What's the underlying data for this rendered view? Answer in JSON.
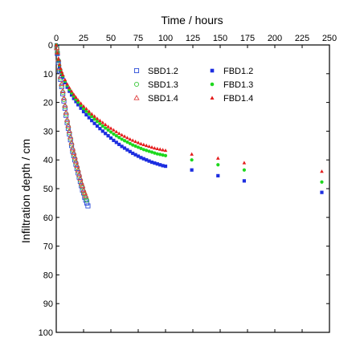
{
  "chart_data": {
    "type": "scatter",
    "xlabel": "Time / hours",
    "ylabel": "Infiltration depth / cm",
    "xlim": [
      0,
      250
    ],
    "ylim": [
      0,
      100
    ],
    "y_inverted": true,
    "x_axis_position": "top",
    "x_ticks": [
      0,
      25,
      50,
      75,
      100,
      125,
      150,
      175,
      200,
      225,
      250
    ],
    "y_ticks": [
      0,
      10,
      20,
      30,
      40,
      50,
      60,
      70,
      80,
      90,
      100
    ],
    "grid": false,
    "legend_position": "upper-middle",
    "series": [
      {
        "name": "SBD1.2",
        "marker": "square",
        "filled": false,
        "color": "#2a4bd7",
        "x": [
          0.5,
          1,
          2,
          3,
          4,
          5,
          6,
          7,
          8,
          9,
          10,
          11,
          12,
          13,
          14,
          15,
          16,
          17,
          18,
          19,
          20,
          21,
          22,
          23,
          24,
          25,
          26,
          27,
          28,
          29
        ],
        "y": [
          1,
          3,
          6,
          9,
          12,
          14.5,
          17,
          19.5,
          22,
          24.5,
          27,
          29,
          31,
          33,
          35,
          37,
          38.5,
          40,
          41.5,
          43,
          44.5,
          46,
          47.5,
          49,
          50.5,
          51.5,
          53,
          54,
          55,
          56
        ]
      },
      {
        "name": "SBD1.3",
        "marker": "circle",
        "filled": false,
        "color": "#3cc83c",
        "x": [
          0.5,
          1,
          2,
          3,
          4,
          5,
          6,
          7,
          8,
          9,
          10,
          11,
          12,
          13,
          14,
          15,
          16,
          17,
          18,
          19,
          20,
          21,
          22,
          23,
          24,
          25,
          26,
          27,
          28
        ],
        "y": [
          1,
          2.5,
          5.5,
          8.5,
          11.5,
          14,
          16.5,
          19,
          21.5,
          24,
          26.5,
          28.5,
          30.5,
          32.5,
          34.5,
          36.5,
          38,
          39.5,
          41,
          42.5,
          44,
          45.5,
          47,
          48.5,
          49.5,
          51,
          52,
          53,
          54
        ]
      },
      {
        "name": "SBD1.4",
        "marker": "triangle",
        "filled": false,
        "color": "#e04040",
        "x": [
          0.5,
          1,
          2,
          3,
          4,
          5,
          6,
          7,
          8,
          9,
          10,
          11,
          12,
          13,
          14,
          15,
          16,
          17,
          18,
          19,
          20,
          21,
          22,
          23,
          24,
          25,
          26,
          27
        ],
        "y": [
          1,
          2.5,
          5,
          8,
          11,
          13.5,
          16,
          18.5,
          21,
          23.5,
          26,
          28,
          30,
          32,
          34,
          36,
          37.5,
          39,
          40.5,
          42,
          43.5,
          45,
          46.5,
          48,
          49,
          50.5,
          51.5,
          52.5
        ]
      },
      {
        "name": "FBD1.2",
        "marker": "square",
        "filled": true,
        "color": "#1d2ee0",
        "x": [
          0,
          1,
          2,
          3,
          4,
          5,
          6,
          8,
          10,
          12,
          14,
          16,
          18,
          20,
          22.5,
          25,
          27.5,
          30,
          32.5,
          35,
          37.5,
          40,
          42.5,
          45,
          47.5,
          50,
          52.5,
          55,
          57.5,
          60,
          62.5,
          65,
          67.5,
          70,
          72.5,
          75,
          77.5,
          80,
          82.5,
          85,
          87.5,
          90,
          92.5,
          95,
          97.5,
          100,
          124,
          148,
          172,
          243
        ],
        "y": [
          0,
          3,
          5.5,
          7.5,
          9,
          10.2,
          11.2,
          13.1,
          14.7,
          16.1,
          17.4,
          18.6,
          19.7,
          20.8,
          22,
          23.2,
          24.3,
          25.3,
          26.3,
          27.3,
          28.2,
          29.1,
          30,
          30.8,
          31.6,
          32.4,
          33.2,
          33.9,
          34.6,
          35.3,
          35.9,
          36.5,
          37.1,
          37.7,
          38.2,
          38.7,
          39.2,
          39.6,
          40,
          40.4,
          40.8,
          41.1,
          41.4,
          41.7,
          42,
          42.2,
          43.5,
          45.5,
          47.3,
          51.3
        ]
      },
      {
        "name": "FBD1.3",
        "marker": "circle",
        "filled": true,
        "color": "#1ed81e",
        "x": [
          0,
          1,
          2,
          3,
          4,
          5,
          6,
          8,
          10,
          12,
          14,
          16,
          18,
          20,
          22.5,
          25,
          27.5,
          30,
          32.5,
          35,
          37.5,
          40,
          42.5,
          45,
          47.5,
          50,
          52.5,
          55,
          57.5,
          60,
          62.5,
          65,
          67.5,
          70,
          72.5,
          75,
          77.5,
          80,
          82.5,
          85,
          87.5,
          90,
          92.5,
          95,
          97.5,
          100,
          124,
          148,
          172,
          243
        ],
        "y": [
          0,
          2.9,
          5.2,
          7.1,
          8.6,
          9.8,
          10.8,
          12.6,
          14.1,
          15.5,
          16.7,
          17.8,
          18.9,
          19.9,
          21,
          22.1,
          23.1,
          24,
          24.9,
          25.8,
          26.6,
          27.4,
          28.2,
          28.9,
          29.6,
          30.3,
          31,
          31.6,
          32.2,
          32.8,
          33.3,
          33.8,
          34.3,
          34.8,
          35.2,
          35.6,
          36,
          36.4,
          36.7,
          37,
          37.3,
          37.6,
          37.9,
          38.1,
          38.3,
          38.5,
          40,
          41.7,
          43.5,
          47.7
        ]
      },
      {
        "name": "FBD1.4",
        "marker": "triangle",
        "filled": true,
        "color": "#e41c1c",
        "x": [
          0,
          1,
          2,
          3,
          4,
          5,
          6,
          8,
          10,
          12,
          14,
          16,
          18,
          20,
          22.5,
          25,
          27.5,
          30,
          32.5,
          35,
          37.5,
          40,
          42.5,
          45,
          47.5,
          50,
          52.5,
          55,
          57.5,
          60,
          62.5,
          65,
          67.5,
          70,
          72.5,
          75,
          77.5,
          80,
          82.5,
          85,
          87.5,
          90,
          92.5,
          95,
          97.5,
          100,
          124,
          148,
          172,
          243
        ],
        "y": [
          0,
          2.8,
          5,
          6.8,
          8.2,
          9.4,
          10.4,
          12.1,
          13.6,
          14.9,
          16.1,
          17.2,
          18.2,
          19.2,
          20.3,
          21.3,
          22.2,
          23.1,
          24,
          24.8,
          25.6,
          26.3,
          27,
          27.7,
          28.4,
          29,
          29.6,
          30.2,
          30.8,
          31.3,
          31.8,
          32.3,
          32.8,
          33.2,
          33.6,
          34,
          34.4,
          34.7,
          35,
          35.3,
          35.6,
          35.9,
          36.1,
          36.3,
          36.5,
          36.7,
          38,
          39.4,
          41,
          44
        ]
      }
    ]
  }
}
